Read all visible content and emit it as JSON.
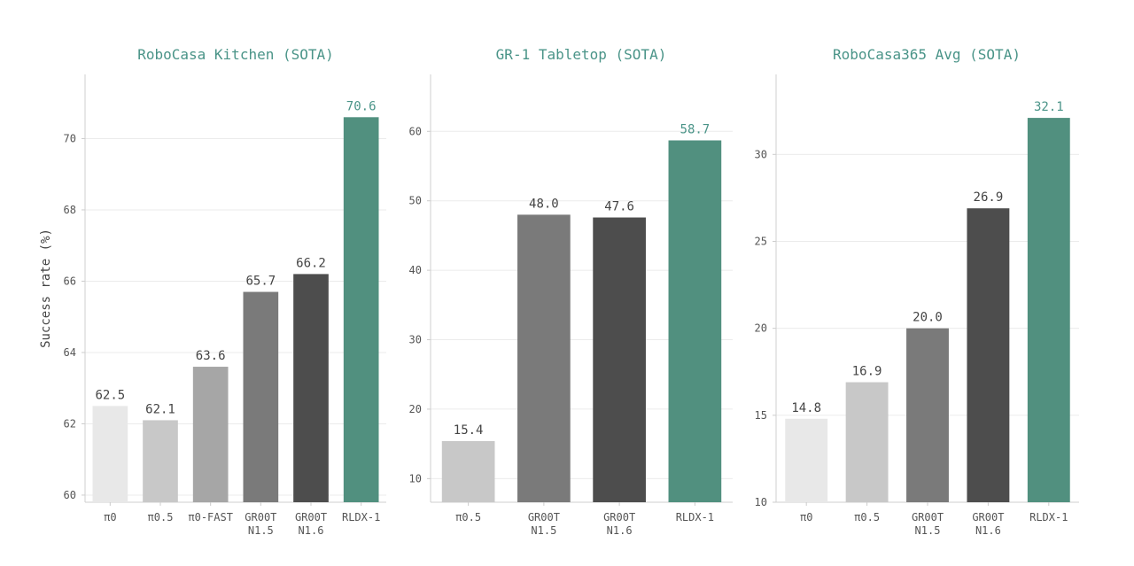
{
  "chart_data": [
    {
      "type": "bar",
      "title": "RoboCasa Kitchen  (SOTA)",
      "ylabel": "Success rate (%)",
      "ylim": [
        59.8,
        71.8
      ],
      "yticks": [
        60,
        62,
        64,
        66,
        68,
        70
      ],
      "grid": true,
      "categories": [
        [
          "π0"
        ],
        [
          "π0.5"
        ],
        [
          "π0-FAST"
        ],
        [
          "GR00T",
          "N1.5"
        ],
        [
          "GR00T",
          "N1.6"
        ],
        [
          "RLDX-1"
        ]
      ],
      "values": [
        62.5,
        62.1,
        63.6,
        65.7,
        66.2,
        70.6
      ],
      "value_labels": [
        "62.5",
        "62.1",
        "63.6",
        "65.7",
        "66.2",
        "70.6"
      ],
      "colors": [
        "#e8e8e8",
        "#c8c8c8",
        "#a6a6a6",
        "#7a7a7a",
        "#4d4d4d",
        "#51907f"
      ],
      "highlight_index": 5
    },
    {
      "type": "bar",
      "title": "GR-1 Tabletop  (SOTA)",
      "ylabel": "",
      "ylim": [
        6.6,
        68.2
      ],
      "yticks": [
        10,
        20,
        30,
        40,
        50,
        60
      ],
      "grid": true,
      "categories": [
        [
          "π0.5"
        ],
        [
          "GR00T",
          "N1.5"
        ],
        [
          "GR00T",
          "N1.6"
        ],
        [
          "RLDX-1"
        ]
      ],
      "values": [
        15.4,
        48.0,
        47.6,
        58.7
      ],
      "value_labels": [
        "15.4",
        "48.0",
        "47.6",
        "58.7"
      ],
      "colors": [
        "#c8c8c8",
        "#7a7a7a",
        "#4d4d4d",
        "#51907f"
      ],
      "highlight_index": 3
    },
    {
      "type": "bar",
      "title": "RoboCasa365 Avg  (SOTA)",
      "ylabel": "",
      "ylim": [
        10,
        34.6
      ],
      "yticks": [
        10,
        15,
        20,
        25,
        30
      ],
      "grid": true,
      "categories": [
        [
          "π0"
        ],
        [
          "π0.5"
        ],
        [
          "GR00T",
          "N1.5"
        ],
        [
          "GR00T",
          "N1.6"
        ],
        [
          "RLDX-1"
        ]
      ],
      "values": [
        14.8,
        16.9,
        20.0,
        26.9,
        32.1
      ],
      "value_labels": [
        "14.8",
        "16.9",
        "20.0",
        "26.9",
        "32.1"
      ],
      "colors": [
        "#e8e8e8",
        "#c8c8c8",
        "#7a7a7a",
        "#4d4d4d",
        "#51907f"
      ],
      "highlight_index": 4
    }
  ]
}
